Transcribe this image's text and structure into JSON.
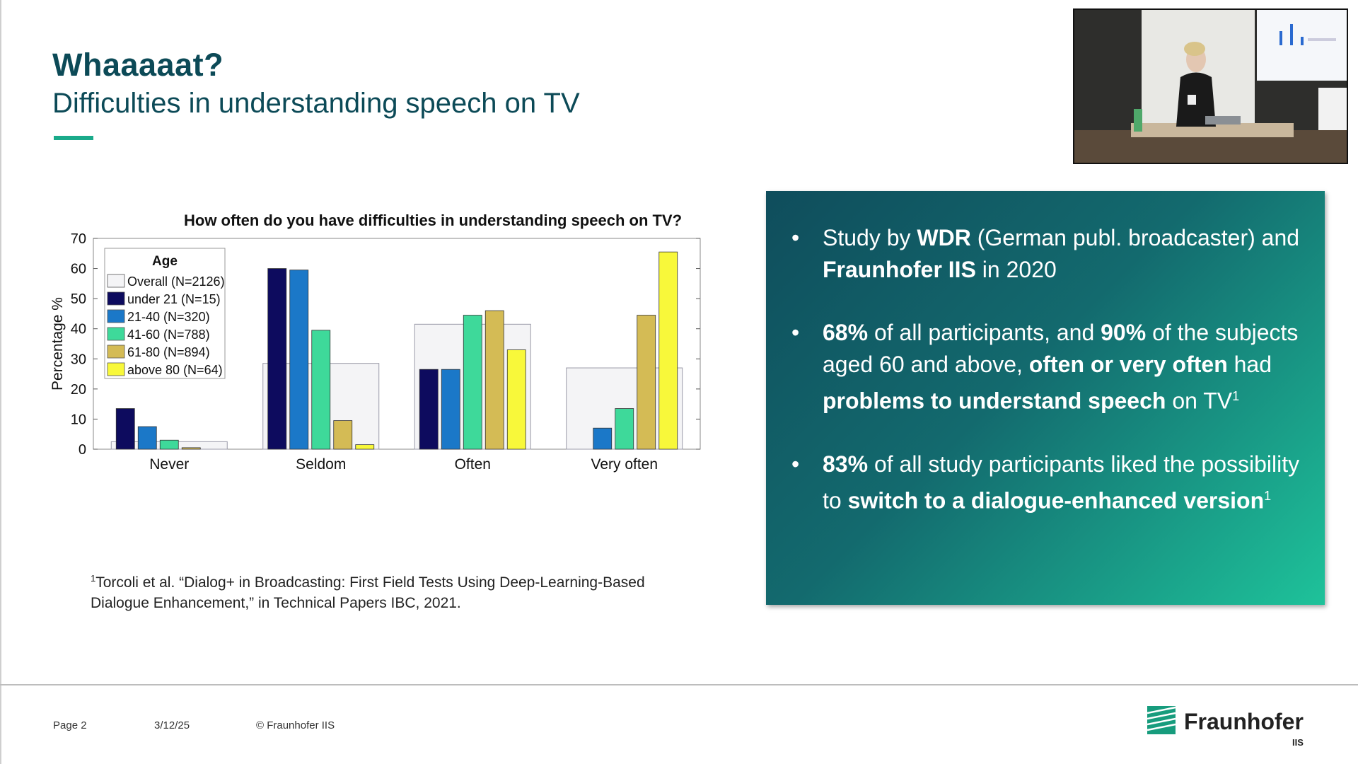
{
  "slide": {
    "title": "Whaaaaat?",
    "subtitle": "Difficulties in understanding speech on TV"
  },
  "chart_data": {
    "type": "bar",
    "title": "How often do you have difficulties in understanding speech on TV?",
    "xlabel": "",
    "ylabel": "Percentage %",
    "ylim": [
      0,
      70
    ],
    "yticks": [
      "0",
      "10",
      "20",
      "30",
      "40",
      "50",
      "60",
      "70"
    ],
    "categories": [
      "Never",
      "Seldom",
      "Often",
      "Very often"
    ],
    "legend_title": "Age",
    "legend_position": "top-left",
    "overall": {
      "name": "Overall (N=2126)",
      "values": [
        2.5,
        28.5,
        41.5,
        27
      ],
      "color": "#f4f4f6"
    },
    "series": [
      {
        "name": "under 21 (N=15)",
        "values": [
          13.5,
          60,
          26.5,
          0
        ],
        "color": "#0d0b5e"
      },
      {
        "name": "21-40 (N=320)",
        "values": [
          7.5,
          59.5,
          26.5,
          7
        ],
        "color": "#1b78c8"
      },
      {
        "name": "41-60 (N=788)",
        "values": [
          3,
          39.5,
          44.5,
          13.5
        ],
        "color": "#3ed99a"
      },
      {
        "name": "61-80 (N=894)",
        "values": [
          0.5,
          9.5,
          46,
          44.5
        ],
        "color": "#d4bb55"
      },
      {
        "name": "above 80 (N=64)",
        "values": [
          0,
          1.5,
          33,
          65.5
        ],
        "color": "#f8f83a"
      }
    ]
  },
  "footnote": {
    "marker": "1",
    "text": "Torcoli et al. “Dialog+ in Broadcasting: First Field Tests Using Deep-Learning-Based Dialogue Enhancement,” in Technical Papers IBC, 2021."
  },
  "info": {
    "b1": {
      "p1": "Study by ",
      "s1": "WDR",
      "p2": " (German publ. broadcaster) and ",
      "s2": "Fraunhofer IIS",
      "p3": " in 2020"
    },
    "b2": {
      "s1": "68%",
      "p1": " of all participants, and ",
      "s2": "90%",
      "p2": " of the subjects aged 60 and above, ",
      "s3": "often or very often",
      "p3": " had ",
      "s4": "problems to understand speech",
      "p4": " on TV",
      "sup": "1"
    },
    "b3": {
      "s1": "83%",
      "p1": " of all study participants liked the possibility to ",
      "s2": "switch to a dialogue-enhanced version",
      "sup": "1"
    }
  },
  "footer": {
    "page": "Page 2",
    "date": "3/12/25",
    "copyright": "© Fraunhofer IIS",
    "logo_name": "Fraunhofer",
    "logo_sub": "IIS"
  },
  "colors": {
    "accent": "#1aaa8a",
    "title": "#0c4a57"
  }
}
